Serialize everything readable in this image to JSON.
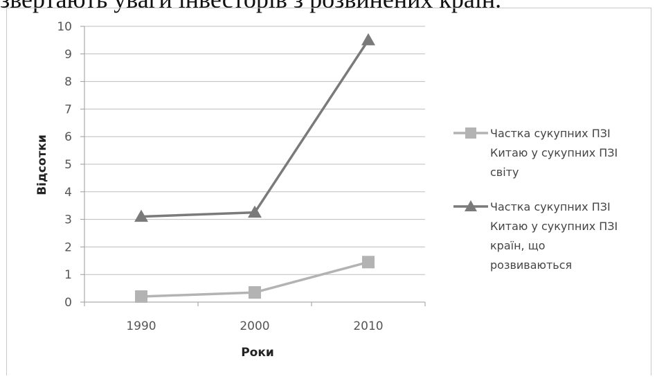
{
  "header_text": "звертають уваги інвесторів з розвинених країн.",
  "chart_data": {
    "type": "line",
    "categories": [
      "1990",
      "2000",
      "2010"
    ],
    "series": [
      {
        "name": "Частка сукупних ПЗІ Китаю у сукупних ПЗІ світу",
        "name_lines": [
          "Частка сукупних ПЗІ",
          "Китаю у сукупних ПЗІ",
          "світу"
        ],
        "values": [
          0.2,
          0.35,
          1.45
        ],
        "marker": "square",
        "color": "#b3b3b3"
      },
      {
        "name": "Частка сукупних ПЗІ Китаю у сукупних ПЗІ країн, що розвиваються",
        "name_lines": [
          "Частка сукупних ПЗІ",
          "Китаю у сукупних ПЗІ",
          "країн, що",
          "розвиваються"
        ],
        "values": [
          3.1,
          3.25,
          9.5
        ],
        "marker": "triangle",
        "color": "#7a7a7a"
      }
    ],
    "xlabel": "Роки",
    "ylabel": "Відсотки",
    "ylim": [
      0,
      10
    ],
    "yticks": [
      "0",
      "1",
      "2",
      "3",
      "4",
      "5",
      "6",
      "7",
      "8",
      "9",
      "10"
    ],
    "grid": true,
    "legend": "right"
  }
}
